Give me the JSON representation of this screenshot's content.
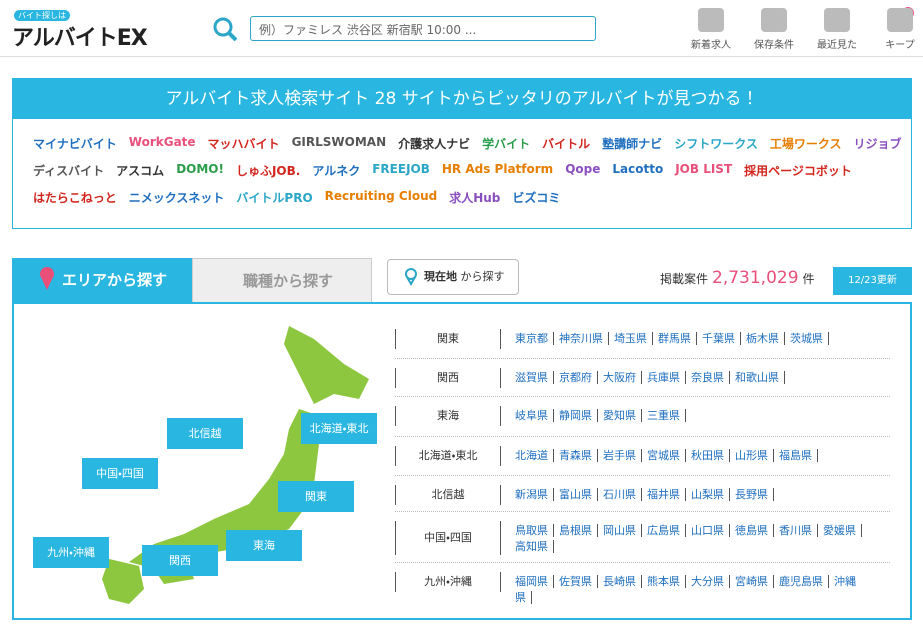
{
  "header": {
    "logo_tagline": "バイト探しは",
    "logo": "アルバイトEX",
    "search_placeholder": "例）ファミレス 渋谷区 新宿駅 10:00 ...",
    "nav": [
      "新着求人",
      "保存条件",
      "最近見た",
      "キープ"
    ],
    "keep_count": "0"
  },
  "banner": {
    "title": "アルバイト求人検索サイト 28 サイトからピッタリのアルバイトが見つかる！",
    "site_rows": [
      [
        "マイナビバイト",
        "WorkGate",
        "マッハバイト",
        "GIRLSWOMAN",
        "介護求人ナビ",
        "学バイト",
        "バイトル",
        "塾講師ナビ",
        "シフトワークス",
        "工場ワークス",
        "リジョブ"
      ],
      [
        "ディスバイト",
        "アスコム",
        "DOMO!",
        "しゅふJOB.",
        "アルネク",
        "FREEJOB",
        "HR Ads Platform",
        "Qope",
        "Lacotto",
        "JOB LIST",
        "採用ページコボット"
      ],
      [
        "はたらこねっと",
        "ニメックスネット",
        "バイトルPRO",
        "Recruiting Cloud",
        "求人Hub",
        "ビズコミ"
      ]
    ]
  },
  "search": {
    "tabs": [
      "エリアから探す",
      "職種から探す"
    ],
    "location_button": "現在地",
    "location_suffix": "から探す",
    "count_label": "掲載案件",
    "count": "2,731,029",
    "count_unit": "件",
    "updated": "12/23更新"
  },
  "map": {
    "labels": [
      "北信越",
      "北海道・東北",
      "中国・四国",
      "関東",
      "九州・沖縄",
      "東海",
      "関西"
    ]
  },
  "regions": [
    {
      "name": "関東",
      "prefectures": [
        "東京都",
        "神奈川県",
        "埼玉県",
        "群馬県",
        "千葉県",
        "栃木県",
        "茨城県"
      ]
    },
    {
      "name": "関西",
      "prefectures": [
        "滋賀県",
        "京都府",
        "大阪府",
        "兵庫県",
        "奈良県",
        "和歌山県"
      ]
    },
    {
      "name": "東海",
      "prefectures": [
        "岐阜県",
        "静岡県",
        "愛知県",
        "三重県"
      ]
    },
    {
      "name": "北海道・東北",
      "prefectures": [
        "北海道",
        "青森県",
        "岩手県",
        "宮城県",
        "秋田県",
        "山形県",
        "福島県"
      ]
    },
    {
      "name": "北信越",
      "prefectures": [
        "新潟県",
        "富山県",
        "石川県",
        "福井県",
        "山梨県",
        "長野県"
      ]
    },
    {
      "name": "中国・四国",
      "prefectures": [
        "鳥取県",
        "島根県",
        "岡山県",
        "広島県",
        "山口県",
        "徳島県",
        "香川県",
        "愛媛県",
        "高知県"
      ]
    },
    {
      "name": "九州・沖縄",
      "prefectures": [
        "福岡県",
        "佐賀県",
        "長崎県",
        "熊本県",
        "大分県",
        "宮崎県",
        "鹿児島県",
        "沖縄県"
      ]
    }
  ]
}
